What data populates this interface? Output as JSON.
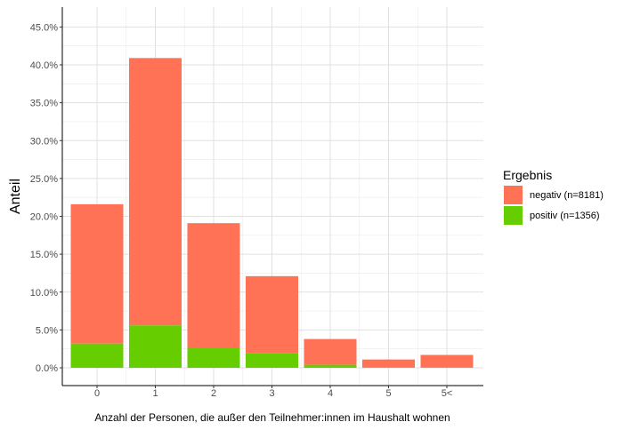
{
  "chart_data": {
    "type": "bar",
    "stacked": true,
    "categories": [
      "0",
      "1",
      "2",
      "3",
      "4",
      "5",
      "5<"
    ],
    "series": [
      {
        "name": "negativ (n=8181)",
        "color": "#FF7256",
        "values": [
          18.4,
          35.3,
          16.4,
          10.2,
          3.4,
          1.0,
          1.6
        ]
      },
      {
        "name": "positiv (n=1356)",
        "color": "#66CD00",
        "values": [
          3.2,
          5.6,
          2.7,
          1.9,
          0.4,
          0.1,
          0.1
        ]
      }
    ],
    "xlabel": "Anzahl der Personen, die außer den Teilnehmer:innen im Haushalt wohnen",
    "ylabel": "Anteil",
    "ylim": [
      0,
      45
    ],
    "y_ticks": [
      0,
      5,
      10,
      15,
      20,
      25,
      30,
      35,
      40,
      45
    ],
    "y_tick_labels": [
      "0.0%",
      "5.0%",
      "10.0%",
      "15.0%",
      "20.0%",
      "25.0%",
      "30.0%",
      "35.0%",
      "40.0%",
      "45.0%"
    ],
    "grid": true,
    "legend": {
      "title": "Ergebnis",
      "position": "right"
    }
  }
}
